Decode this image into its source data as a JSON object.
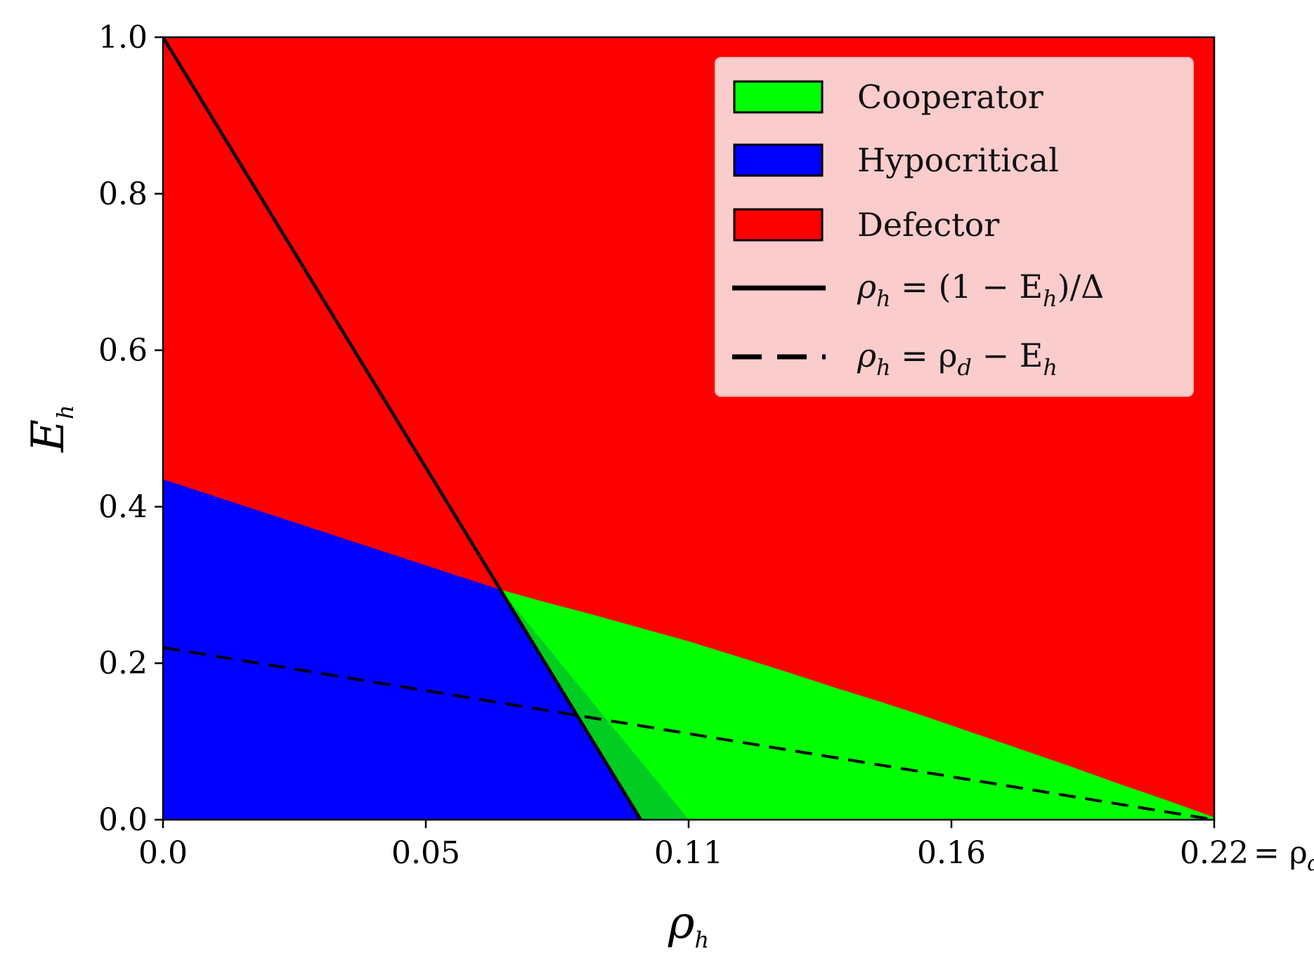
{
  "chart_data": {
    "type": "heatmap",
    "xlabel": "ρ",
    "xlabel_sub": "h",
    "ylabel": "E",
    "ylabel_sub": "h",
    "xlim": [
      0.0,
      0.22
    ],
    "ylim": [
      0.0,
      1.0
    ],
    "x_ticks": [
      {
        "value": 0.0,
        "label": "0.0"
      },
      {
        "value": 0.055,
        "label": "0.05"
      },
      {
        "value": 0.11,
        "label": "0.11"
      },
      {
        "value": 0.165,
        "label": "0.16"
      },
      {
        "value": 0.22,
        "label": "0.22"
      }
    ],
    "x_last_tick_suffix": {
      "eq": "= ρ",
      "sub": "d"
    },
    "y_ticks": [
      {
        "value": 0.0,
        "label": "0.0"
      },
      {
        "value": 0.2,
        "label": "0.2"
      },
      {
        "value": 0.4,
        "label": "0.4"
      },
      {
        "value": 0.6,
        "label": "0.6"
      },
      {
        "value": 0.8,
        "label": "0.8"
      },
      {
        "value": 1.0,
        "label": "1.0"
      }
    ],
    "rho_d": 0.22,
    "delta": 10,
    "regions": {
      "hypocritical_upper_boundary": {
        "x": [
          0.0,
          0.01,
          0.02,
          0.03,
          0.04,
          0.05,
          0.06,
          0.0706
        ],
        "y": [
          0.435,
          0.415,
          0.395,
          0.375,
          0.355,
          0.335,
          0.315,
          0.294
        ]
      },
      "cooperator_upper_boundary": {
        "x": [
          0.0706,
          0.08,
          0.09,
          0.1,
          0.11,
          0.12,
          0.13,
          0.14,
          0.15,
          0.16,
          0.17,
          0.18,
          0.19,
          0.2,
          0.21,
          0.22
        ],
        "y": [
          0.294,
          0.278,
          0.262,
          0.245,
          0.228,
          0.209,
          0.19,
          0.17,
          0.151,
          0.131,
          0.11,
          0.089,
          0.068,
          0.046,
          0.025,
          0.003
        ]
      },
      "transition_band_bottom_x": [
        0.1,
        0.11
      ]
    },
    "series": [
      {
        "name": "Cooperator",
        "kind": "area",
        "color": "#00ff00"
      },
      {
        "name": "Hypocritical",
        "kind": "area",
        "color": "#0000ff"
      },
      {
        "name": "Defector",
        "kind": "area",
        "color": "#ff0000"
      },
      {
        "name": "ρh = (1 − Eh)/Δ",
        "kind": "line",
        "style": "solid",
        "color": "#000000",
        "x": [
          0.0,
          0.1
        ],
        "y": [
          1.0,
          0.0
        ]
      },
      {
        "name": "ρh = ρd − Eh",
        "kind": "line",
        "style": "dashed",
        "color": "#000000",
        "x": [
          0.0,
          0.22
        ],
        "y": [
          0.22,
          0.0
        ]
      }
    ],
    "legend": {
      "placement": "top-right",
      "entries": [
        {
          "label": "Cooperator",
          "type": "patch",
          "color": "#00ff00"
        },
        {
          "label": "Hypocritical",
          "type": "patch",
          "color": "#0000ff"
        },
        {
          "label": "Defector",
          "type": "patch",
          "color": "#ff0000"
        },
        {
          "label_parts": [
            "ρ",
            "h",
            " = (1 − E",
            "h",
            ")/Δ"
          ],
          "type": "line-solid"
        },
        {
          "label_parts": [
            "ρ",
            "h",
            " = ρ",
            "d",
            " − E",
            "h"
          ],
          "type": "line-dashed"
        }
      ]
    },
    "colors": {
      "cooperator": "#00ff00",
      "hypocritical": "#0000ff",
      "defector": "#ff0000",
      "transition": "#00cc22",
      "legend_bg": "#fbcccc"
    },
    "grid": false
  }
}
